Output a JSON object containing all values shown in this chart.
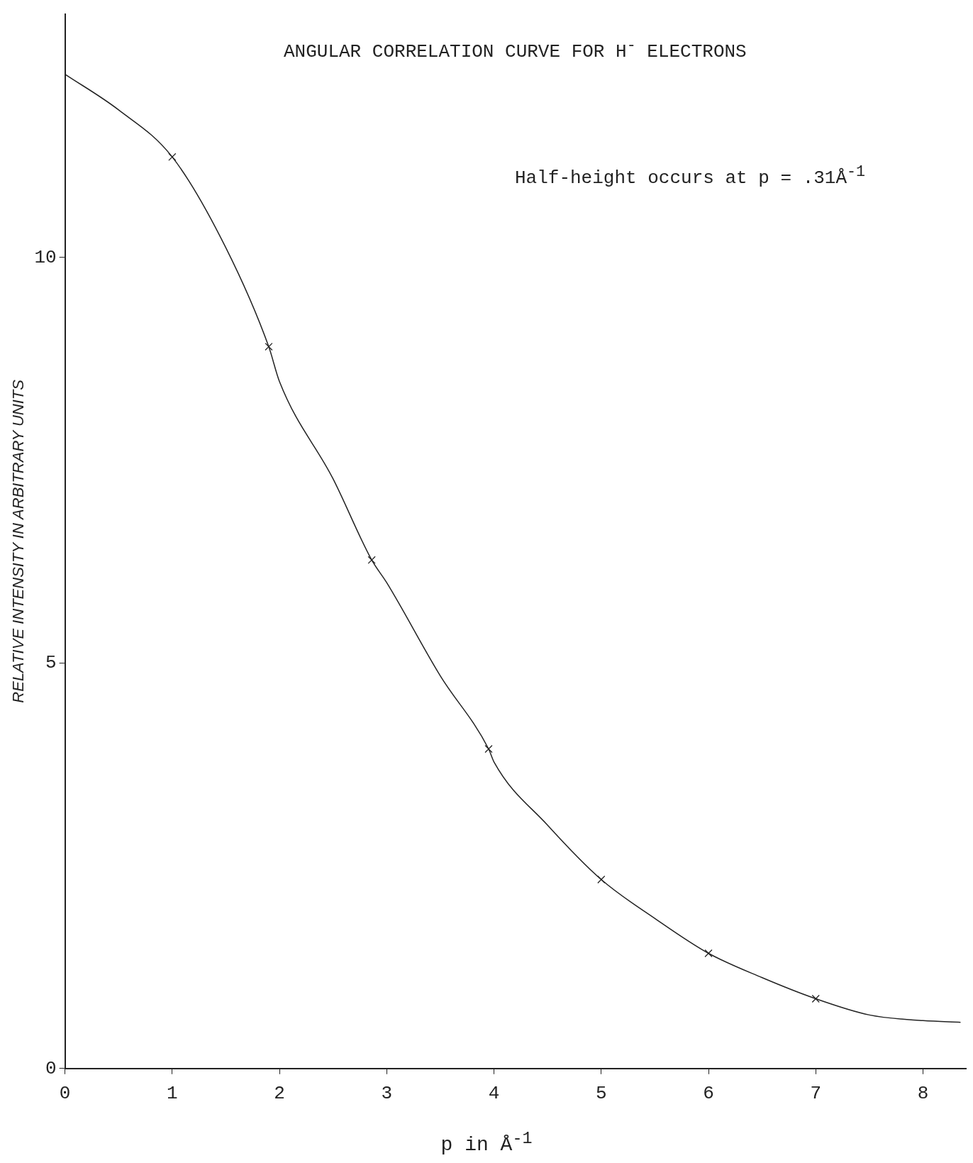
{
  "chart_data": {
    "type": "line",
    "title": "ANGULAR CORRELATION CURVE FOR H$^{-}$ ELECTRONS",
    "xlabel": "p in Å$^{-1}$",
    "ylabel": "RELATIVE INTENSITY IN ARBITRARY UNITS",
    "annotations": [
      "Half-height occurs at p = .31Å$^{-1}$"
    ],
    "xlim": [
      0,
      8.4
    ],
    "xticks": [
      0,
      1,
      2,
      3,
      4,
      5,
      6,
      7,
      8
    ],
    "ylim": [
      0,
      13
    ],
    "yticks": [
      0,
      5,
      10
    ],
    "grid": false,
    "legend": false,
    "series": [
      {
        "type": "line",
        "color": "#222222",
        "marker": "none",
        "line_style": "solid",
        "x": [
          0,
          0.5,
          1,
          1.5,
          1.9,
          2,
          2.5,
          2.86,
          3,
          3.5,
          3.95,
          4,
          4.5,
          5,
          5.5,
          6,
          6.5,
          7,
          7.5,
          8,
          8.35
        ],
        "values": [
          12.26,
          11.82,
          11.24,
          10.12,
          8.9,
          8.47,
          7.27,
          6.27,
          5.99,
          4.84,
          3.94,
          3.78,
          3.0,
          2.33,
          1.85,
          1.42,
          1.12,
          0.86,
          0.66,
          0.59,
          0.57
        ]
      },
      {
        "type": "scatter",
        "color": "#222222",
        "marker": "cross",
        "x": [
          1,
          1.9,
          2.86,
          3.95,
          5,
          6,
          7
        ],
        "values": [
          11.24,
          8.9,
          6.27,
          3.94,
          2.33,
          1.42,
          0.86
        ]
      }
    ]
  }
}
